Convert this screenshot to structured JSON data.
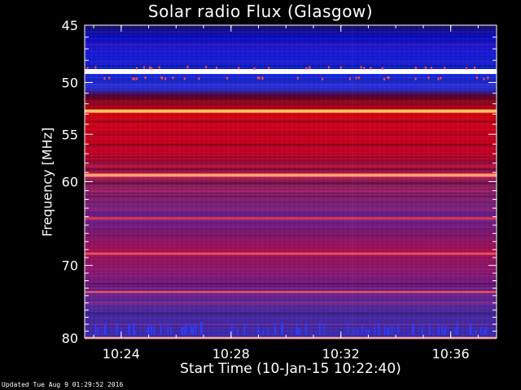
{
  "chart_data": {
    "type": "heatmap",
    "title": "Solar radio Flux (Glasgow)",
    "xlabel": "Start Time (10-Jan-15 10:22:40)",
    "ylabel": "Frequency [MHz]",
    "x_ticks": [
      "10:24",
      "10:28",
      "10:32",
      "10:36"
    ],
    "x_tick_minutes": [
      1.33,
      5.33,
      9.33,
      13.33
    ],
    "x_range_minutes": [
      0,
      15
    ],
    "y_ticks": [
      45,
      50,
      55,
      60,
      70,
      80
    ],
    "ylim": [
      45,
      80
    ],
    "y_scale": "log",
    "y_inverted": true,
    "bands": [
      {
        "freq": 49.0,
        "color": "#ffffff",
        "strength": "very high"
      },
      {
        "freq": 52.7,
        "color": "#ffc060",
        "strength": "high"
      },
      {
        "freq": 59.3,
        "color": "#ffa070",
        "strength": "high"
      },
      {
        "freq": 64.2,
        "color": "#ff4040",
        "strength": "medium"
      },
      {
        "freq": 68.5,
        "color": "#ff6060",
        "strength": "medium"
      },
      {
        "freq": 73.5,
        "color": "#ff6060",
        "strength": "medium"
      },
      {
        "freq": 80.0,
        "color": "#ff8060",
        "strength": "medium"
      }
    ],
    "colors": {
      "low": "#0000c0",
      "mid": "#6020a0",
      "high": "#d00000",
      "peak": "#ffffff"
    }
  },
  "footer": "Updated Tue Aug  9 01:29:52 2016"
}
